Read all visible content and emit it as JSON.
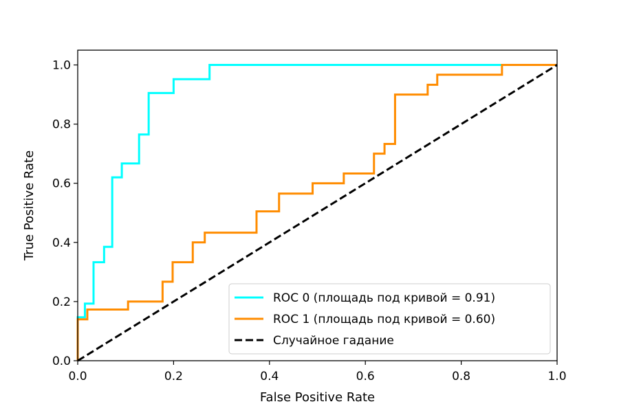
{
  "chart_data": {
    "type": "line",
    "title": "",
    "xlabel": "False Positive Rate",
    "ylabel": "True Positive Rate",
    "xlim": [
      0.0,
      1.0
    ],
    "ylim": [
      0.0,
      1.05
    ],
    "xticks": [
      0.0,
      0.2,
      0.4,
      0.6,
      0.8,
      1.0
    ],
    "yticks": [
      0.0,
      0.2,
      0.4,
      0.6,
      0.8,
      1.0
    ],
    "xtick_labels": [
      "0.0",
      "0.2",
      "0.4",
      "0.6",
      "0.8",
      "1.0"
    ],
    "ytick_labels": [
      "0.0",
      "0.2",
      "0.4",
      "0.6",
      "0.8",
      "1.0"
    ],
    "grid": false,
    "legend_position": "lower-right",
    "series": [
      {
        "name": "ROC 0 (площадь под кривой = 0.91)",
        "color": "#00ffff",
        "style": "solid",
        "x": [
          0.0,
          0.0,
          0.015,
          0.015,
          0.033,
          0.033,
          0.055,
          0.055,
          0.072,
          0.072,
          0.092,
          0.092,
          0.128,
          0.128,
          0.148,
          0.148,
          0.2,
          0.2,
          0.275,
          0.275,
          0.885
        ],
        "y": [
          0.0,
          0.147,
          0.147,
          0.193,
          0.193,
          0.333,
          0.333,
          0.385,
          0.385,
          0.62,
          0.62,
          0.667,
          0.667,
          0.765,
          0.765,
          0.905,
          0.905,
          0.952,
          0.952,
          1.0,
          1.0
        ]
      },
      {
        "name": "ROC 1 (площадь под кривой = 0.60)",
        "color": "#ff8c00",
        "style": "solid",
        "x": [
          0.0,
          0.0,
          0.02,
          0.02,
          0.105,
          0.105,
          0.177,
          0.177,
          0.198,
          0.198,
          0.24,
          0.24,
          0.265,
          0.265,
          0.373,
          0.373,
          0.42,
          0.42,
          0.49,
          0.49,
          0.555,
          0.555,
          0.618,
          0.618,
          0.64,
          0.64,
          0.662,
          0.662,
          0.73,
          0.73,
          0.75,
          0.75,
          0.885,
          0.885,
          1.0
        ],
        "y": [
          0.0,
          0.14,
          0.14,
          0.173,
          0.173,
          0.2,
          0.2,
          0.267,
          0.267,
          0.333,
          0.333,
          0.4,
          0.4,
          0.433,
          0.433,
          0.505,
          0.505,
          0.565,
          0.565,
          0.6,
          0.6,
          0.633,
          0.633,
          0.7,
          0.7,
          0.733,
          0.733,
          0.9,
          0.9,
          0.933,
          0.933,
          0.967,
          0.967,
          1.0,
          1.0
        ]
      },
      {
        "name": "Случайное гадание",
        "color": "#000000",
        "style": "dashed",
        "x": [
          0.0,
          1.0
        ],
        "y": [
          0.0,
          1.0
        ]
      }
    ]
  }
}
